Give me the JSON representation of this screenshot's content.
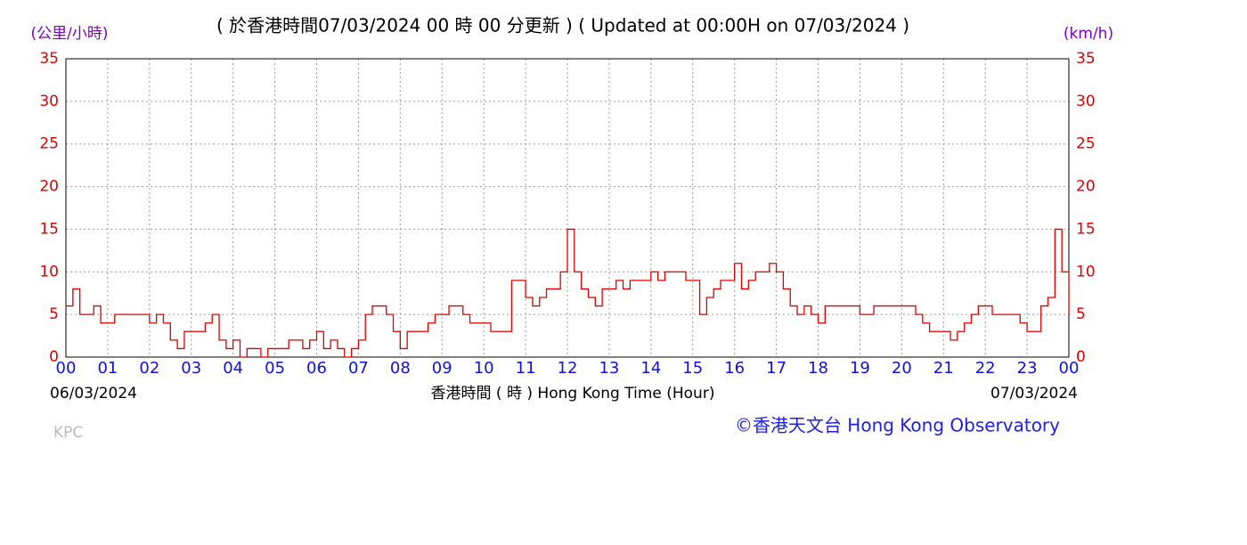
{
  "chart_data": {
    "type": "line",
    "title": "( 於香港時間07/03/2024 00 時 00 分更新 ) ( Updated at 00:00H on 07/03/2024 )",
    "y_unit_left": "(公里/小時)",
    "y_unit_right": "(km/h)",
    "x_label": "香港時間 ( 時 ) Hong Kong Time (Hour)",
    "start_date": "06/03/2024",
    "end_date": "07/03/2024",
    "credit": "©香港天文台 Hong Kong Observatory",
    "station": "KPC",
    "grid": true,
    "xlim": [
      0,
      24
    ],
    "ylim": [
      0,
      35
    ],
    "yticks": [
      0,
      5,
      10,
      15,
      20,
      25,
      30,
      35
    ],
    "xticks": [
      {
        "value": 0,
        "label": "00"
      },
      {
        "value": 1,
        "label": "01"
      },
      {
        "value": 2,
        "label": "02"
      },
      {
        "value": 3,
        "label": "03"
      },
      {
        "value": 4,
        "label": "04"
      },
      {
        "value": 5,
        "label": "05"
      },
      {
        "value": 6,
        "label": "06"
      },
      {
        "value": 7,
        "label": "07"
      },
      {
        "value": 8,
        "label": "08"
      },
      {
        "value": 9,
        "label": "09"
      },
      {
        "value": 10,
        "label": "10"
      },
      {
        "value": 11,
        "label": "11"
      },
      {
        "value": 12,
        "label": "12"
      },
      {
        "value": 13,
        "label": "13"
      },
      {
        "value": 14,
        "label": "14"
      },
      {
        "value": 15,
        "label": "15"
      },
      {
        "value": 16,
        "label": "16"
      },
      {
        "value": 17,
        "label": "17"
      },
      {
        "value": 18,
        "label": "18"
      },
      {
        "value": 19,
        "label": "19"
      },
      {
        "value": 20,
        "label": "20"
      },
      {
        "value": 21,
        "label": "21"
      },
      {
        "value": 22,
        "label": "22"
      },
      {
        "value": 23,
        "label": "23"
      },
      {
        "value": 24,
        "label": "00"
      }
    ],
    "x_step_minutes": 10,
    "series": [
      {
        "name": "KPC",
        "color": "#dd0000",
        "values": [
          6,
          8,
          5,
          5,
          6,
          4,
          4,
          5,
          5,
          5,
          5,
          5,
          4,
          5,
          4,
          2,
          1,
          3,
          3,
          3,
          4,
          5,
          2,
          1,
          2,
          0,
          1,
          1,
          0,
          1,
          1,
          1,
          2,
          2,
          1,
          2,
          3,
          1,
          2,
          1,
          0,
          1,
          2,
          5,
          6,
          6,
          5,
          3,
          1,
          3,
          3,
          3,
          4,
          5,
          5,
          6,
          6,
          5,
          4,
          4,
          4,
          3,
          3,
          3,
          9,
          9,
          7,
          6,
          7,
          8,
          8,
          10,
          15,
          10,
          8,
          7,
          6,
          8,
          8,
          9,
          8,
          9,
          9,
          9,
          10,
          9,
          10,
          10,
          10,
          9,
          9,
          5,
          7,
          8,
          9,
          9,
          11,
          8,
          9,
          10,
          10,
          11,
          10,
          8,
          6,
          5,
          6,
          5,
          4,
          6,
          6,
          6,
          6,
          6,
          5,
          5,
          6,
          6,
          6,
          6,
          6,
          6,
          5,
          4,
          3,
          3,
          3,
          2,
          3,
          4,
          5,
          6,
          6,
          5,
          5,
          5,
          5,
          4,
          3,
          3,
          6,
          7,
          15,
          10,
          5
        ]
      }
    ]
  }
}
